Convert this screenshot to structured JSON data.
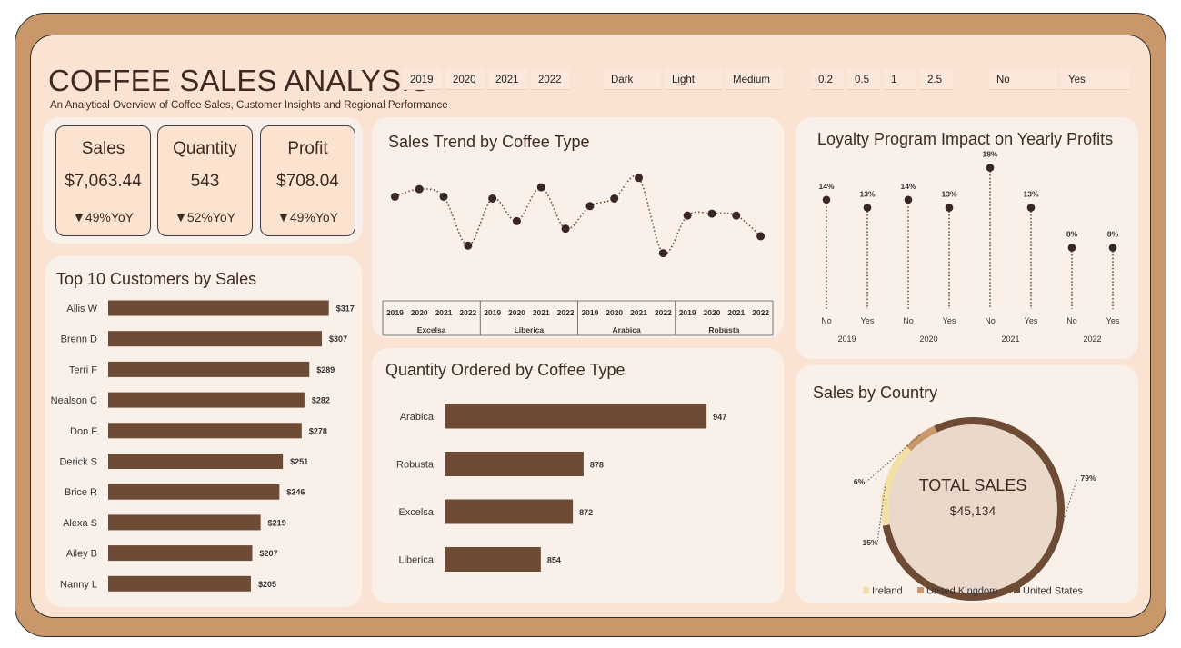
{
  "header": {
    "title": "COFFEE SALES ANALYSIS",
    "subtitle": "An Analytical Overview of Coffee Sales, Customer Insights and Regional Performance"
  },
  "slicers": {
    "years": [
      "2019",
      "2020",
      "2021",
      "2022"
    ],
    "roast": [
      "Dark",
      "Light",
      "Medium"
    ],
    "size": [
      "0.2",
      "0.5",
      "1",
      "2.5"
    ],
    "loyalty": [
      "No",
      "Yes"
    ]
  },
  "kpis": [
    {
      "label": "Sales",
      "value": "$7,063.44",
      "yoy": "▼49%YoY"
    },
    {
      "label": "Quantity",
      "value": "543",
      "yoy": "▼52%YoY"
    },
    {
      "label": "Profit",
      "value": "$708.04",
      "yoy": "▼49%YoY"
    }
  ],
  "panels": {
    "top_customers": "Top 10 Customers by Sales",
    "sales_trend": "Sales Trend by Coffee Type",
    "quantity": "Quantity Ordered by Coffee Type",
    "loyalty": "Loyalty Program Impact on Yearly Profits",
    "country": "Sales by Country"
  },
  "colors": {
    "bar": "#6e4b35",
    "dark_brown": "#6e4b35",
    "ireland": "#f2e0a6",
    "uk": "#c8986a",
    "us": "#6e4b35",
    "frame": "#c8986a",
    "background": "#fae3d2",
    "panel": "#faf0ea"
  },
  "chart_data": [
    {
      "type": "bar",
      "orientation": "horizontal",
      "categories": [
        "Allis W",
        "Brenn D",
        "Terri F",
        "Nealson C",
        "Don F",
        "Derick S",
        "Brice R",
        "Alexa S",
        "Ailey B",
        "Nanny L"
      ],
      "values": [
        317,
        307,
        289,
        282,
        278,
        251,
        246,
        219,
        207,
        205
      ],
      "labels": [
        "$317",
        "$307",
        "$289",
        "$282",
        "$278",
        "$251",
        "$246",
        "$219",
        "$207",
        "$205"
      ],
      "xlim": [
        0,
        320
      ]
    },
    {
      "type": "line",
      "groups": [
        "Excelsa",
        "Liberica",
        "Arabica",
        "Robusta"
      ],
      "years": [
        "2019",
        "2020",
        "2021",
        "2022"
      ],
      "values": [
        0.7,
        0.74,
        0.7,
        0.44,
        0.69,
        0.57,
        0.75,
        0.53,
        0.65,
        0.69,
        0.8,
        0.4,
        0.6,
        0.61,
        0.6,
        0.49
      ],
      "ylim": [
        0.2,
        0.9
      ]
    },
    {
      "type": "bar",
      "orientation": "horizontal",
      "categories": [
        "Arabica",
        "Robusta",
        "Excelsa",
        "Liberica"
      ],
      "values": [
        947,
        878,
        872,
        854
      ],
      "labels": [
        "947",
        "878",
        "872",
        "854"
      ],
      "xlim": [
        800,
        950
      ]
    },
    {
      "type": "scatter",
      "style": "lollipop",
      "groups": [
        "2019",
        "2020",
        "2021",
        "2022"
      ],
      "categories": [
        "No",
        "Yes"
      ],
      "values": [
        14,
        13,
        14,
        13,
        18,
        13,
        8,
        8
      ],
      "labels": [
        "14%",
        "13%",
        "14%",
        "13%",
        "18%",
        "13%",
        "8%",
        "8%"
      ],
      "ylim": [
        0,
        20
      ]
    },
    {
      "type": "pie",
      "style": "donut",
      "center_title": "TOTAL SALES",
      "center_value": "$45,134",
      "categories": [
        "Ireland",
        "United Kingdom",
        "United States"
      ],
      "values": [
        15,
        6,
        79
      ],
      "labels": [
        "15%",
        "6%",
        "79%"
      ],
      "legend": "bottom"
    }
  ]
}
